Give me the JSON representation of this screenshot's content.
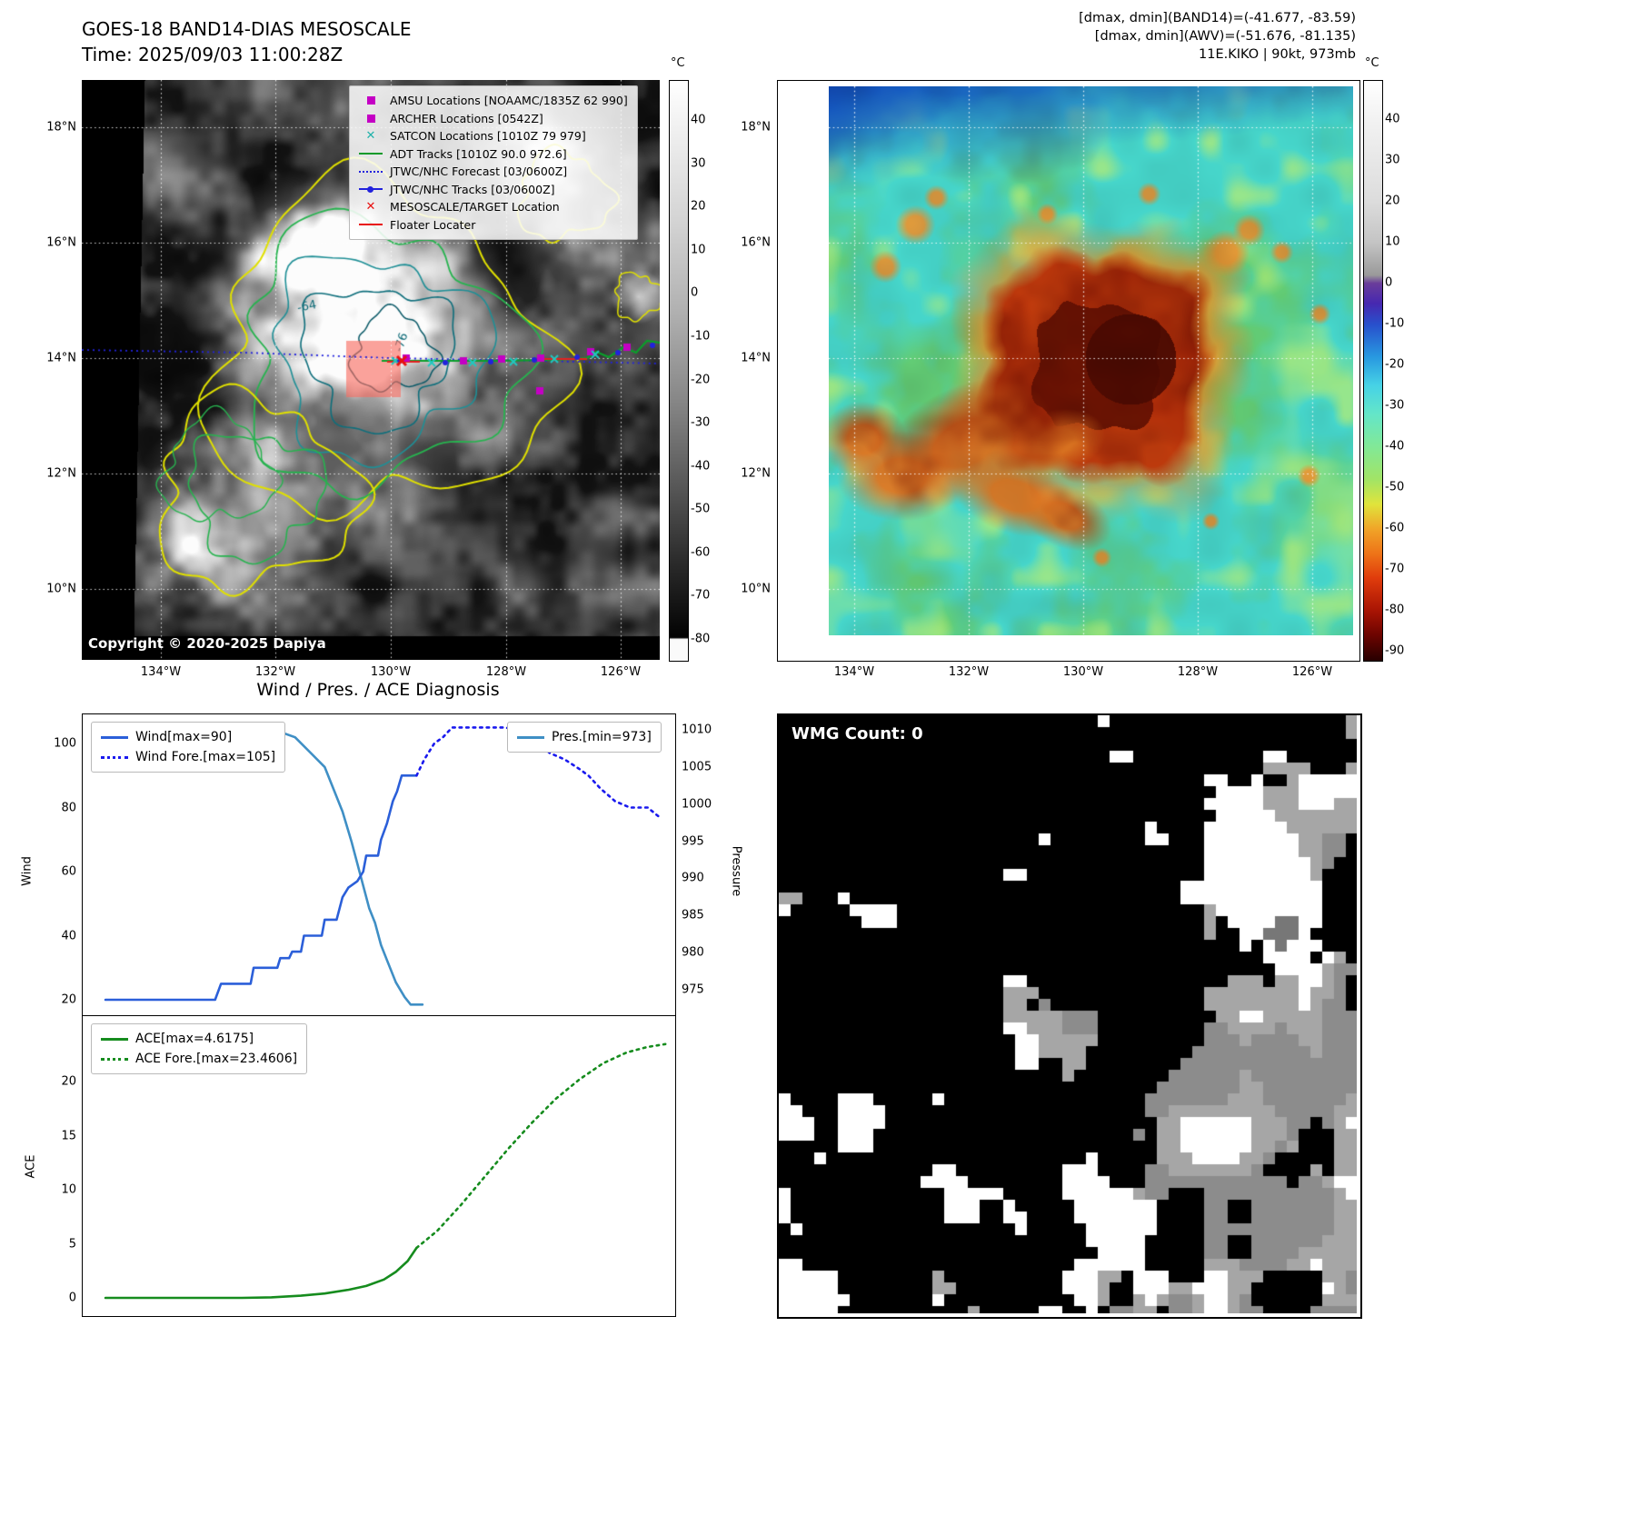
{
  "band14_panel": {
    "title": "GOES-18 BAND14-DIAS MESOSCALE",
    "time_line": "Time: 2025/09/03 11:00:28Z",
    "copyright": "Copyright © 2020-2025 Dapiya",
    "colorbar_unit": "°C",
    "colorbar_ticks": [
      40,
      30,
      20,
      10,
      0,
      -10,
      -20,
      -30,
      -40,
      -50,
      -60,
      -70,
      -80
    ],
    "lat_ticks": [
      "18°N",
      "16°N",
      "14°N",
      "12°N",
      "10°N"
    ],
    "lon_ticks": [
      "134°W",
      "132°W",
      "130°W",
      "128°W",
      "126°W"
    ],
    "contour_labels": [
      "-64",
      "-76"
    ],
    "legend_items": [
      {
        "label": "AMSU Locations [NOAAMC/1835Z 62 990]",
        "marker": "square",
        "color": "#c400c4"
      },
      {
        "label": "ARCHER Locations [0542Z]",
        "marker": "square",
        "color": "#c400c4"
      },
      {
        "label": "SATCON Locations [1010Z 79 979]",
        "marker": "x",
        "color": "#20b2aa"
      },
      {
        "label": "ADT Tracks [1010Z 90.0 972.6]",
        "marker": "line",
        "color": "#0a9a2a"
      },
      {
        "label": "JTWC/NHC Forecast [03/0600Z]",
        "marker": "dotted",
        "color": "#2222dd"
      },
      {
        "label": "JTWC/NHC Tracks [03/0600Z]",
        "marker": "line-dot",
        "color": "#2222dd"
      },
      {
        "label": "MESOSCALE/TARGET Location",
        "marker": "x-bold",
        "color": "#e81010"
      },
      {
        "label": "Floater Locater",
        "marker": "line",
        "color": "#e81010"
      }
    ]
  },
  "awv_panel": {
    "header_lines": [
      "[dmax, dmin](BAND14)=(-41.677, -83.59)",
      "[dmax, dmin](AWV)=(-51.676, -81.135)",
      "11E.KIKO | 90kt, 973mb"
    ],
    "colorbar_unit": "°C",
    "colorbar_ticks": [
      40,
      30,
      20,
      10,
      0,
      -10,
      -20,
      -30,
      -40,
      -50,
      -60,
      -70,
      -80,
      -90
    ],
    "lat_ticks": [
      "18°N",
      "16°N",
      "14°N",
      "12°N",
      "10°N"
    ],
    "lon_ticks": [
      "134°W",
      "132°W",
      "130°W",
      "128°W",
      "126°W"
    ]
  },
  "diagnosis_title": "Wind / Pres. / ACE Diagnosis",
  "wmg_panel": {
    "title": "WMG Count: 0"
  },
  "chart_data": [
    {
      "type": "line",
      "panel": "wind_pressure",
      "title": "Wind / Pres. / ACE Diagnosis",
      "xlabel": "",
      "ylabel_left": "Wind",
      "ylabel_right": "Pressure",
      "yticks_left": [
        20,
        40,
        60,
        80,
        100
      ],
      "yticks_right": [
        975,
        980,
        985,
        990,
        995,
        1000,
        1005,
        1010
      ],
      "ylim_left": [
        15.7,
        109.4
      ],
      "ylim_right": [
        971.8,
        1012.2
      ],
      "x_units": "normalized time 0-1 (axis unlabeled)",
      "grid": false,
      "series": [
        {
          "name": "Wind[max=90]",
          "axis": "left",
          "style": "solid",
          "color": "#2b5fd9",
          "points": [
            [
              0.04,
              20
            ],
            [
              0.225,
              20
            ],
            [
              0.235,
              25
            ],
            [
              0.285,
              25
            ],
            [
              0.29,
              30
            ],
            [
              0.33,
              30
            ],
            [
              0.335,
              33
            ],
            [
              0.35,
              33
            ],
            [
              0.355,
              35
            ],
            [
              0.37,
              35
            ],
            [
              0.375,
              40
            ],
            [
              0.405,
              40
            ],
            [
              0.41,
              45
            ],
            [
              0.43,
              45
            ],
            [
              0.44,
              52
            ],
            [
              0.45,
              55
            ],
            [
              0.465,
              57
            ],
            [
              0.475,
              60
            ],
            [
              0.48,
              65
            ],
            [
              0.5,
              65
            ],
            [
              0.505,
              70
            ],
            [
              0.515,
              75
            ],
            [
              0.525,
              82
            ],
            [
              0.532,
              85
            ],
            [
              0.54,
              90
            ],
            [
              0.565,
              90
            ]
          ]
        },
        {
          "name": "Wind Fore.[max=105]",
          "axis": "left",
          "style": "dotted",
          "color": "#1a1aee",
          "points": [
            [
              0.565,
              90
            ],
            [
              0.578,
              95
            ],
            [
              0.595,
              100
            ],
            [
              0.61,
              102
            ],
            [
              0.625,
              105
            ],
            [
              0.715,
              105
            ],
            [
              0.735,
              104
            ],
            [
              0.755,
              102
            ],
            [
              0.77,
              100
            ],
            [
              0.79,
              97
            ],
            [
              0.815,
              95
            ],
            [
              0.84,
              92
            ],
            [
              0.855,
              90
            ],
            [
              0.875,
              86
            ],
            [
              0.9,
              82
            ],
            [
              0.925,
              80
            ],
            [
              0.955,
              80
            ],
            [
              0.975,
              77
            ]
          ]
        },
        {
          "name": "Pres.[min=973]",
          "axis": "right",
          "style": "solid",
          "color": "#3f8fc5",
          "points": [
            [
              0.04,
              1010
            ],
            [
              0.325,
              1010
            ],
            [
              0.36,
              1009
            ],
            [
              0.385,
              1007
            ],
            [
              0.41,
              1005
            ],
            [
              0.425,
              1002
            ],
            [
              0.44,
              999
            ],
            [
              0.455,
              995
            ],
            [
              0.465,
              992
            ],
            [
              0.475,
              989
            ],
            [
              0.485,
              986
            ],
            [
              0.495,
              984
            ],
            [
              0.505,
              981
            ],
            [
              0.515,
              979
            ],
            [
              0.53,
              976
            ],
            [
              0.545,
              974
            ],
            [
              0.555,
              973
            ],
            [
              0.575,
              973
            ]
          ]
        }
      ]
    },
    {
      "type": "line",
      "panel": "ace",
      "xlabel": "",
      "ylabel_left": "ACE",
      "yticks_left": [
        0,
        5,
        10,
        15,
        20
      ],
      "ylim_left": [
        -1.6,
        25.9
      ],
      "grid": false,
      "series": [
        {
          "name": "ACE[max=4.6175]",
          "axis": "left",
          "style": "solid",
          "color": "#168c1e",
          "points": [
            [
              0.04,
              0
            ],
            [
              0.27,
              0
            ],
            [
              0.32,
              0.05
            ],
            [
              0.37,
              0.2
            ],
            [
              0.41,
              0.4
            ],
            [
              0.45,
              0.75
            ],
            [
              0.48,
              1.1
            ],
            [
              0.51,
              1.7
            ],
            [
              0.53,
              2.4
            ],
            [
              0.55,
              3.4
            ],
            [
              0.565,
              4.62
            ]
          ]
        },
        {
          "name": "ACE Fore.[max=23.4606]",
          "axis": "left",
          "style": "dotted",
          "color": "#168c1e",
          "points": [
            [
              0.565,
              4.62
            ],
            [
              0.6,
              6.2
            ],
            [
              0.64,
              8.6
            ],
            [
              0.68,
              11.2
            ],
            [
              0.72,
              13.8
            ],
            [
              0.76,
              16.2
            ],
            [
              0.8,
              18.4
            ],
            [
              0.84,
              20.2
            ],
            [
              0.88,
              21.7
            ],
            [
              0.92,
              22.7
            ],
            [
              0.955,
              23.2
            ],
            [
              0.985,
              23.46
            ]
          ]
        }
      ]
    }
  ]
}
